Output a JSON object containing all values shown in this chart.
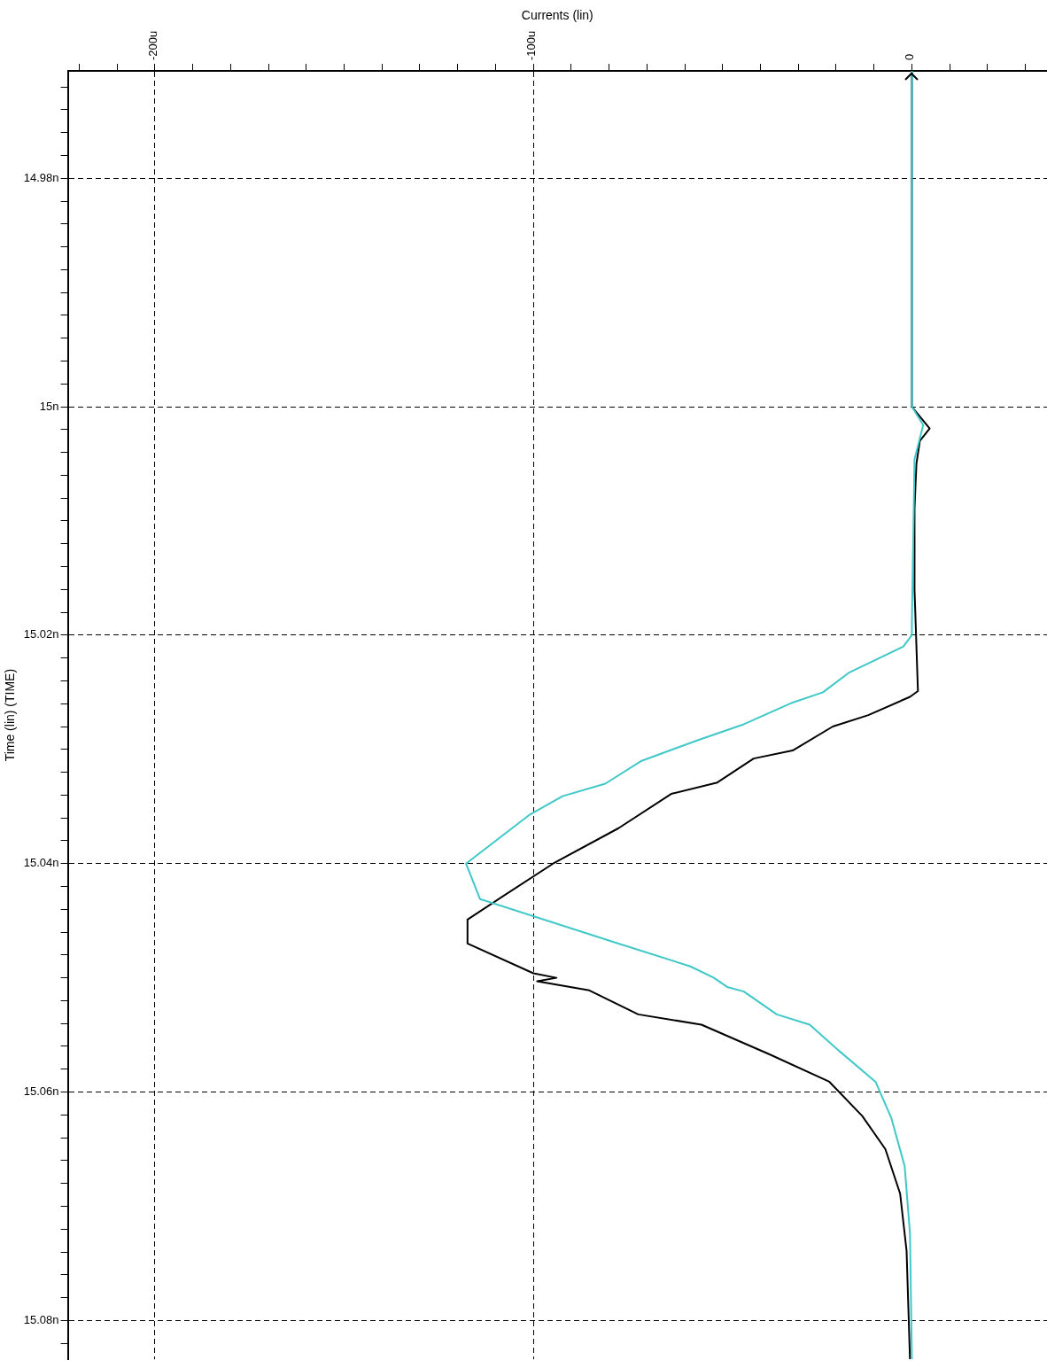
{
  "chart_data": {
    "type": "line",
    "orientation": "horizontal",
    "xlabel": "Currents (lin)",
    "ylabel": "Time (lin) (TIME)",
    "xlim": [
      -223,
      35.7
    ],
    "ylim": [
      15.0834,
      14.9706
    ],
    "xticks": [
      {
        "value": -220,
        "label": null
      },
      {
        "value": -210,
        "label": null
      },
      {
        "value": -200,
        "label": "-200u"
      },
      {
        "value": -190,
        "label": null
      },
      {
        "value": -180,
        "label": null
      },
      {
        "value": -170,
        "label": null
      },
      {
        "value": -160,
        "label": null
      },
      {
        "value": -150,
        "label": null
      },
      {
        "value": -140,
        "label": null
      },
      {
        "value": -130,
        "label": null
      },
      {
        "value": -120,
        "label": null
      },
      {
        "value": -110,
        "label": null
      },
      {
        "value": -100,
        "label": "-100u"
      },
      {
        "value": -90,
        "label": null
      },
      {
        "value": -80,
        "label": null
      },
      {
        "value": -70,
        "label": null
      },
      {
        "value": -60,
        "label": null
      },
      {
        "value": -50,
        "label": null
      },
      {
        "value": -40,
        "label": null
      },
      {
        "value": -30,
        "label": null
      },
      {
        "value": -20,
        "label": null
      },
      {
        "value": -10,
        "label": null
      },
      0,
      {
        "value": 10,
        "label": null
      },
      {
        "value": 20,
        "label": null
      },
      {
        "value": 30,
        "label": null
      }
    ],
    "yticks": [
      {
        "value": 14.972,
        "label": null
      },
      {
        "value": 14.974,
        "label": null
      },
      {
        "value": 14.976,
        "label": null
      },
      {
        "value": 14.978,
        "label": null
      },
      {
        "value": 14.98,
        "label": "14.98n"
      },
      {
        "value": 14.982,
        "label": null
      },
      {
        "value": 14.984,
        "label": null
      },
      {
        "value": 14.986,
        "label": null
      },
      {
        "value": 14.988,
        "label": null
      },
      {
        "value": 14.99,
        "label": null
      },
      {
        "value": 14.992,
        "label": null
      },
      {
        "value": 14.994,
        "label": null
      },
      {
        "value": 14.996,
        "label": null
      },
      {
        "value": 14.998,
        "label": null
      },
      {
        "value": 15,
        "label": "15n"
      },
      {
        "value": 15.002,
        "label": null
      },
      {
        "value": 15.004,
        "label": null
      },
      {
        "value": 15.006,
        "label": null
      },
      {
        "value": 15.008,
        "label": null
      },
      {
        "value": 15.01,
        "label": null
      },
      {
        "value": 15.012,
        "label": null
      },
      {
        "value": 15.014,
        "label": null
      },
      {
        "value": 15.016,
        "label": null
      },
      {
        "value": 15.018,
        "label": null
      },
      {
        "value": 15.02,
        "label": "15.02n"
      },
      {
        "value": 15.022,
        "label": null
      },
      {
        "value": 15.024,
        "label": null
      },
      {
        "value": 15.026,
        "label": null
      },
      {
        "value": 15.028,
        "label": null
      },
      {
        "value": 15.03,
        "label": null
      },
      {
        "value": 15.032,
        "label": null
      },
      {
        "value": 15.034,
        "label": null
      },
      {
        "value": 15.036,
        "label": null
      },
      {
        "value": 15.038,
        "label": null
      },
      {
        "value": 15.04,
        "label": "15.04n"
      },
      {
        "value": 15.042,
        "label": null
      },
      {
        "value": 15.044,
        "label": null
      },
      {
        "value": 15.046,
        "label": null
      },
      {
        "value": 15.048,
        "label": null
      },
      {
        "value": 15.05,
        "label": null
      },
      {
        "value": 15.052,
        "label": null
      },
      {
        "value": 15.054,
        "label": null
      },
      {
        "value": 15.056,
        "label": null
      },
      {
        "value": 15.058,
        "label": null
      },
      {
        "value": 15.06,
        "label": "15.06n"
      },
      {
        "value": 15.062,
        "label": null
      },
      {
        "value": 15.064,
        "label": null
      },
      {
        "value": 15.066,
        "label": null
      },
      {
        "value": 15.068,
        "label": null
      },
      {
        "value": 15.07,
        "label": null
      },
      {
        "value": 15.072,
        "label": null
      },
      {
        "value": 15.074,
        "label": null
      },
      {
        "value": 15.076,
        "label": null
      },
      {
        "value": 15.078,
        "label": null
      },
      {
        "value": 15.08,
        "label": "15.08n"
      },
      {
        "value": 15.082,
        "label": null
      }
    ],
    "grid": true,
    "legend": false,
    "marker": "none",
    "line_style": "solid",
    "series": [
      {
        "color": "#40c8c8",
        "x": [
          14.9706,
          15,
          15.0016,
          15.0046,
          15.019,
          15.02,
          15.021,
          15.0233,
          15.025,
          15.0259,
          15.0278,
          15.0292,
          15.031,
          15.033,
          15.0341,
          15.0357,
          15.04,
          15.0431,
          15.047,
          15.049,
          15.05,
          15.0508,
          15.0512,
          15.0532,
          15.0541,
          15.0564,
          15.0591,
          15.0623,
          15.0665,
          15.0724,
          15.0834
        ],
        "values": [
          0,
          0,
          3,
          0.7,
          0,
          0,
          -2.3,
          -16.7,
          -23.5,
          -31.5,
          -44.4,
          -56.6,
          -71.4,
          -81,
          -92.3,
          -100.9,
          -117.8,
          -114.1,
          -77.5,
          -58.5,
          -52.3,
          -48.8,
          -44.4,
          -35.7,
          -27,
          -19.2,
          -9.6,
          -5.4,
          -1.9,
          -0.5,
          0
        ]
      },
      {
        "color": "#000000",
        "x": [
          14.9706,
          15,
          15.0019,
          15.003,
          15.005,
          15.0089,
          15.016,
          15.0249,
          15.0254,
          15.027,
          15.028,
          15.0301,
          15.0308,
          15.0329,
          15.0339,
          15.0369,
          15.04,
          15.043,
          15.0449,
          15.047,
          15.0496,
          15.05,
          15.0503,
          15.0511,
          15.0532,
          15.0541,
          15.0567,
          15.0591,
          15.0621,
          15.065,
          15.0689,
          15.0739,
          15.0834
        ],
        "values": [
          0,
          0,
          4.7,
          2.1,
          1.2,
          0.7,
          0.7,
          1.6,
          -0.5,
          -11.5,
          -20.9,
          -31.5,
          -41.8,
          -51.4,
          -63.6,
          -77.5,
          -94.8,
          -108.7,
          -117.4,
          -117.4,
          -100,
          -93.9,
          -99,
          -85.2,
          -72.3,
          -55.6,
          -37.6,
          -21.8,
          -13.1,
          -7,
          -3.1,
          -1.4,
          -0.5
        ]
      }
    ]
  }
}
